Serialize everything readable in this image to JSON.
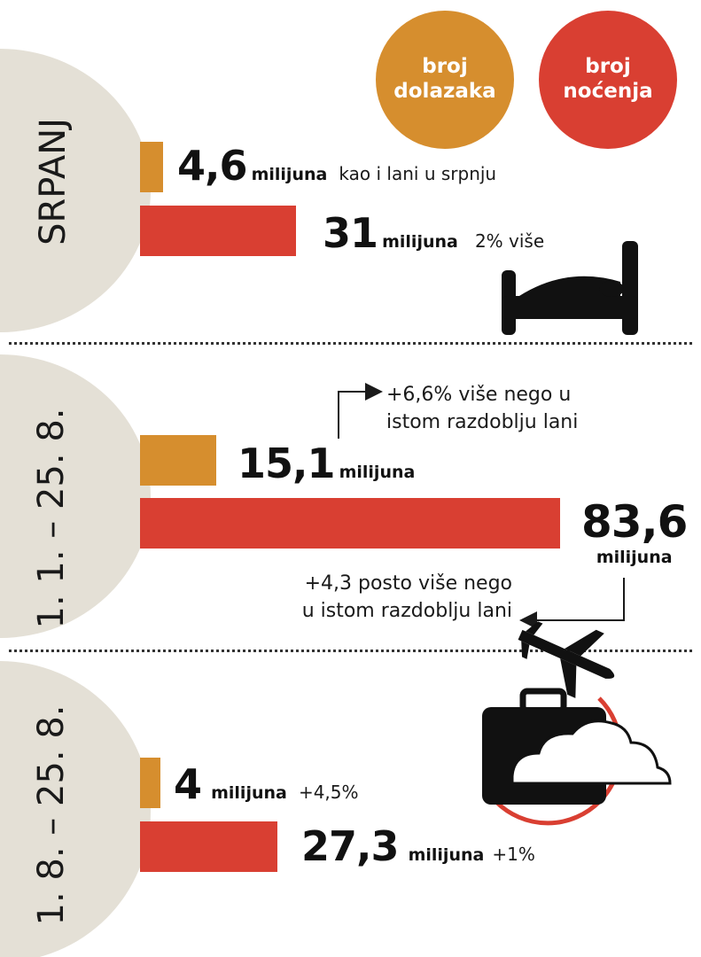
{
  "legend": {
    "arrivals": {
      "line1": "broj",
      "line2": "dolazaka",
      "color": "#D68E2E"
    },
    "nights": {
      "line1": "broj",
      "line2": "noćenja",
      "color": "#D93F32"
    }
  },
  "chart_data": {
    "type": "bar",
    "unit": "milijuna",
    "series": [
      {
        "name": "broj dolazaka",
        "color": "#D68E2E"
      },
      {
        "name": "broj noćenja",
        "color": "#D93F32"
      }
    ],
    "periods": [
      {
        "label": "SRPANJ",
        "arrivals": {
          "value": 4.6,
          "display": "4,6",
          "unit": "milijuna",
          "note": "kao i lani u srpnju"
        },
        "nights": {
          "value": 31,
          "display": "31",
          "unit": "milijuna",
          "note": "2% više"
        }
      },
      {
        "label": "1. 1. – 25. 8.",
        "arrivals": {
          "value": 15.1,
          "display": "15,1",
          "unit": "milijuna",
          "note": ""
        },
        "nights": {
          "value": 83.6,
          "display": "83,6",
          "unit": "milijuna",
          "note": ""
        },
        "arrivals_annotation": [
          "+6,6% više nego u",
          "istom razdoblju lani"
        ],
        "nights_annotation": [
          "+4,3 posto više nego",
          "u istom razdoblju lani"
        ]
      },
      {
        "label": "1. 8. – 25. 8.",
        "arrivals": {
          "value": 4,
          "display": "4",
          "unit": "milijuna",
          "note": "+4,5%"
        },
        "nights": {
          "value": 27.3,
          "display": "27,3",
          "unit": "milijuna",
          "note": "+1%"
        }
      }
    ]
  },
  "icons": [
    "bed-icon",
    "airplane-icon",
    "suitcase-icon",
    "cloud-icon"
  ],
  "colors": {
    "circle_bg": "#E4E0D6",
    "divider": "#333333",
    "arrow": "#1a1a1a"
  }
}
